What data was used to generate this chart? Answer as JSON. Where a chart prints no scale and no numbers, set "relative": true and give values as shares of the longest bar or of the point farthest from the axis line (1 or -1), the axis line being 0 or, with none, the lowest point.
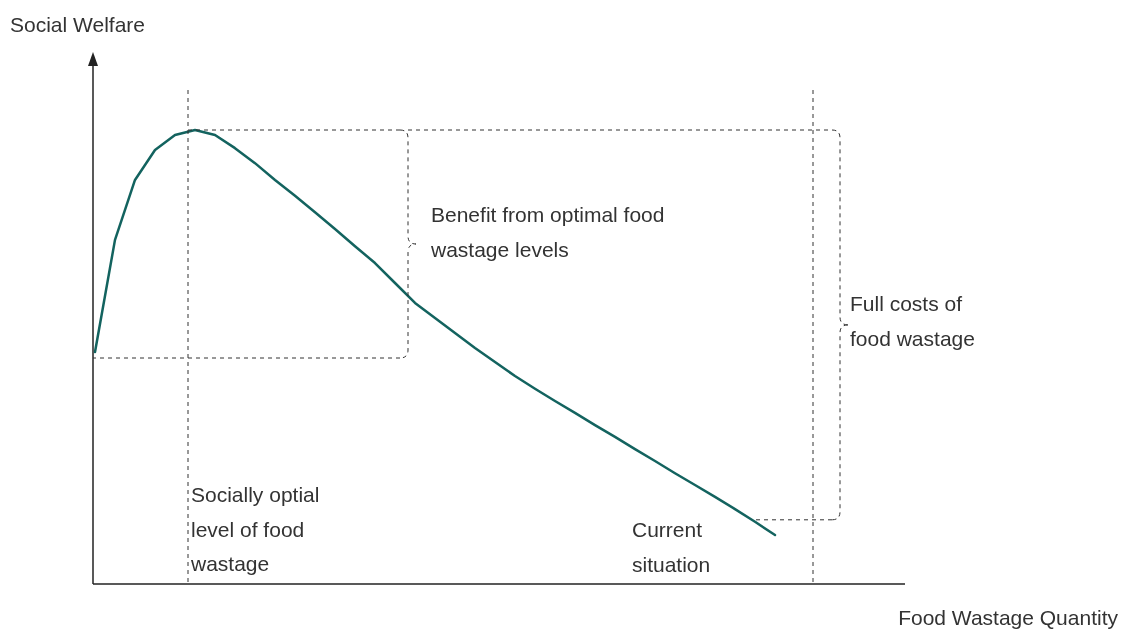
{
  "chart_data": {
    "type": "line",
    "relative": true,
    "xlabel": "Food Wastage Quantity",
    "ylabel": "Social Welfare",
    "tick_labels": false,
    "grid": false,
    "legend": false,
    "marker": "none",
    "line_style": "solid",
    "categories": [
      null,
      null,
      null,
      null,
      null,
      null,
      null,
      null,
      null,
      null,
      null,
      null,
      null,
      null,
      null,
      null,
      null,
      null,
      null,
      null,
      null,
      null,
      null,
      null,
      null,
      null,
      null,
      null,
      null,
      null,
      null,
      null,
      null,
      null,
      null,
      null,
      null,
      null,
      null,
      null,
      null
    ],
    "series": [
      {
        "color": "#13635f",
        "values": [
          0.511,
          0.758,
          0.89,
          0.956,
          0.989,
          1,
          0.989,
          0.96,
          0.927,
          0.89,
          0.855,
          0.819,
          0.782,
          0.744,
          0.707,
          0.663,
          0.619,
          0.586,
          0.553,
          0.52,
          0.489,
          0.458,
          0.43,
          0.403,
          0.377,
          0.35,
          0.324,
          0.297,
          0.271,
          0.244,
          0.218,
          0.192,
          0.165,
          0.137,
          0.108,
          null,
          null,
          null,
          null,
          null,
          null
        ]
      }
    ],
    "annotations": [
      "Socially optial level of food wastage",
      "Current situation",
      "Benefit from optimal food wastage levels",
      "Full costs of food wastage"
    ]
  }
}
